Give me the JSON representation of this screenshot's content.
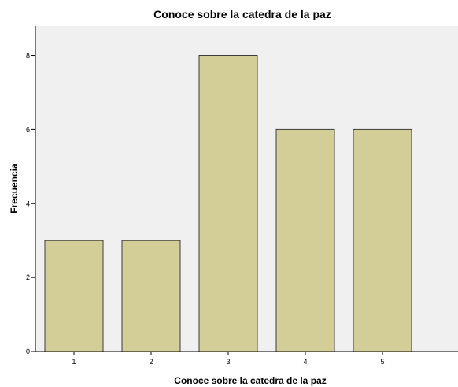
{
  "chart_data": {
    "type": "bar",
    "title": "Conoce sobre la catedra de la paz",
    "xlabel": "Conoce sobre la catedra de la paz",
    "ylabel": "Frecuencia",
    "categories": [
      "1",
      "2",
      "3",
      "4",
      "5"
    ],
    "values": [
      3,
      3,
      8,
      6,
      6
    ],
    "ylim": [
      0,
      8.8
    ],
    "yticks": [
      0,
      2,
      4,
      6,
      8
    ],
    "grid": false,
    "colors": {
      "bar_fill": "#d3ce97",
      "bar_stroke": "#3c3c3c",
      "plot_background": "#f0f0f0",
      "axis": "#000000"
    }
  }
}
